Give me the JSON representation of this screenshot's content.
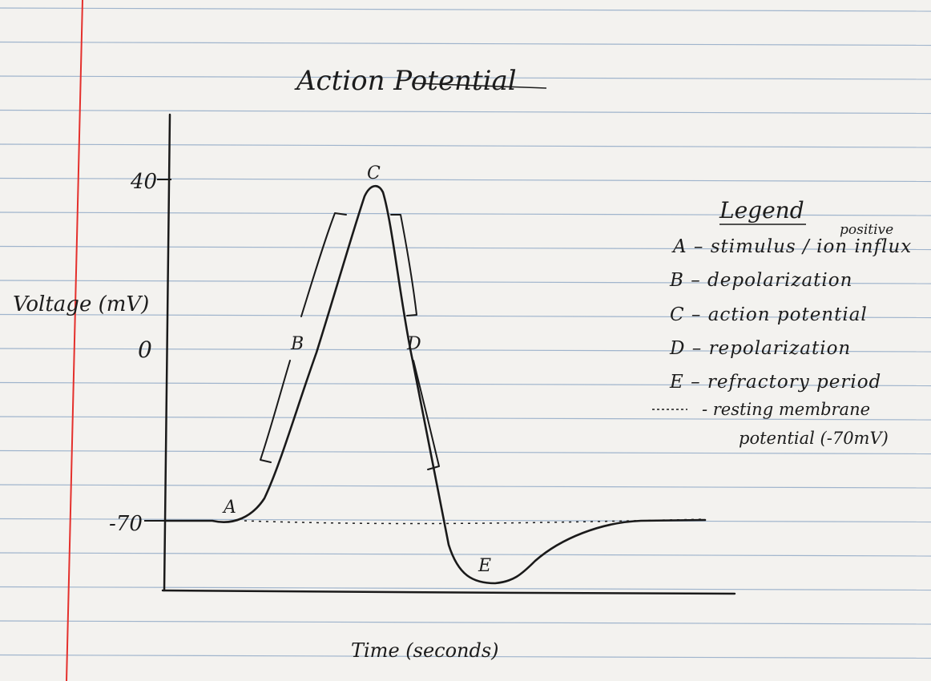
{
  "title": "Action Potential",
  "axes": {
    "ylabel": "Voltage (mV)",
    "xlabel": "Time (seconds)",
    "ticks": [
      "40",
      "0",
      "-70"
    ]
  },
  "points": {
    "A": "A",
    "B": "B",
    "C": "C",
    "D": "D",
    "E": "E"
  },
  "legend": {
    "heading": "Legend",
    "superscript": "positive",
    "items": [
      "A – stimulus / ion influx",
      "B – depolarization",
      "C – action potential",
      "D – repolarization",
      "E – refractory period"
    ],
    "resting_line": "- resting membrane",
    "resting_line_2": "potential (-70mV)"
  },
  "colors": {
    "paper": "#f3f2ef",
    "rule_line": "#9fb4cc",
    "margin_line": "#e4302c",
    "ink": "#1a1a1a"
  }
}
